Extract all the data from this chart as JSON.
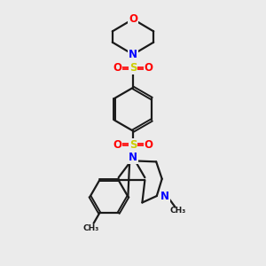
{
  "background_color": "#ebebeb",
  "bond_color": "#1a1a1a",
  "N_color": "#0000ff",
  "O_color": "#ff0000",
  "S_color": "#cccc00",
  "C_color": "#1a1a1a",
  "line_width": 1.6,
  "figsize": [
    3.0,
    3.0
  ],
  "dpi": 100,
  "xlim": [
    0,
    10
  ],
  "ylim": [
    0,
    10
  ]
}
